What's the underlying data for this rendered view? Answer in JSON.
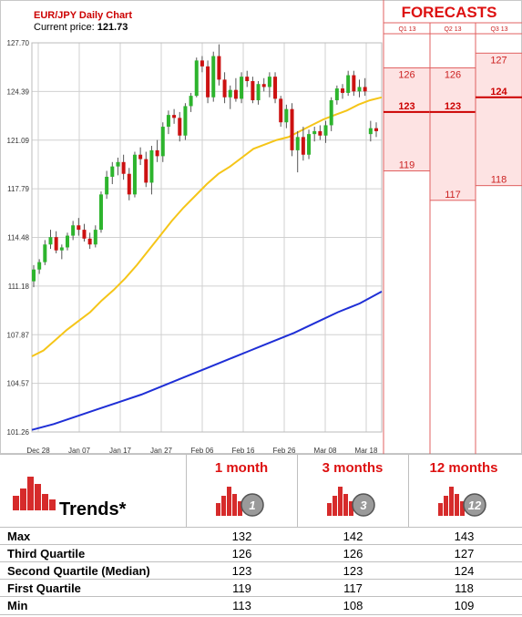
{
  "chart": {
    "title": "EUR/JPY Daily Chart",
    "price_label": "Current price: ",
    "price_value": "121.73"
  },
  "forecasts": {
    "title": "FORECASTS",
    "quarters": [
      "Q1 13",
      "Q2 13",
      "Q3 13"
    ]
  },
  "chart_data": {
    "type": "candlestick",
    "title": "EUR/JPY Daily Chart",
    "ylim": [
      101.26,
      127.7
    ],
    "y_ticks": [
      "127.70",
      "124.39",
      "121.09",
      "117.79",
      "114.48",
      "111.18",
      "107.87",
      "104.57",
      "101.26"
    ],
    "x_ticks": [
      "Dec 28",
      "Jan 07",
      "Jan 17",
      "Jan 27",
      "Feb 06",
      "Feb 16",
      "Feb 26",
      "Mar 08",
      "Mar 18"
    ],
    "grid": true,
    "candles": [
      {
        "o": 111.5,
        "h": 112.6,
        "l": 111.1,
        "c": 112.3
      },
      {
        "o": 112.3,
        "h": 113.0,
        "l": 112.0,
        "c": 112.8
      },
      {
        "o": 112.8,
        "h": 114.3,
        "l": 112.6,
        "c": 114.0
      },
      {
        "o": 114.0,
        "h": 115.0,
        "l": 113.7,
        "c": 114.5
      },
      {
        "o": 114.5,
        "h": 114.9,
        "l": 113.4,
        "c": 113.6
      },
      {
        "o": 113.6,
        "h": 114.0,
        "l": 113.0,
        "c": 113.8
      },
      {
        "o": 113.8,
        "h": 114.8,
        "l": 113.6,
        "c": 114.6
      },
      {
        "o": 114.6,
        "h": 115.6,
        "l": 114.3,
        "c": 115.3
      },
      {
        "o": 115.3,
        "h": 115.8,
        "l": 114.6,
        "c": 115.0
      },
      {
        "o": 115.0,
        "h": 115.4,
        "l": 114.2,
        "c": 114.4
      },
      {
        "o": 114.4,
        "h": 114.8,
        "l": 113.7,
        "c": 114.0
      },
      {
        "o": 114.0,
        "h": 115.3,
        "l": 113.8,
        "c": 115.0
      },
      {
        "o": 115.0,
        "h": 117.6,
        "l": 114.8,
        "c": 117.4
      },
      {
        "o": 117.4,
        "h": 119.0,
        "l": 117.1,
        "c": 118.6
      },
      {
        "o": 118.6,
        "h": 119.6,
        "l": 118.1,
        "c": 119.3
      },
      {
        "o": 119.3,
        "h": 119.9,
        "l": 118.7,
        "c": 119.6
      },
      {
        "o": 119.6,
        "h": 120.1,
        "l": 118.4,
        "c": 118.8
      },
      {
        "o": 118.8,
        "h": 119.2,
        "l": 117.0,
        "c": 117.4
      },
      {
        "o": 117.4,
        "h": 120.3,
        "l": 117.2,
        "c": 120.1
      },
      {
        "o": 120.1,
        "h": 120.6,
        "l": 119.4,
        "c": 119.8
      },
      {
        "o": 119.8,
        "h": 120.3,
        "l": 117.9,
        "c": 118.2
      },
      {
        "o": 118.2,
        "h": 120.7,
        "l": 117.4,
        "c": 120.4
      },
      {
        "o": 120.4,
        "h": 121.1,
        "l": 119.6,
        "c": 120.0
      },
      {
        "o": 120.0,
        "h": 122.3,
        "l": 119.6,
        "c": 122.0
      },
      {
        "o": 122.0,
        "h": 123.1,
        "l": 121.5,
        "c": 122.8
      },
      {
        "o": 122.8,
        "h": 123.2,
        "l": 122.2,
        "c": 122.6
      },
      {
        "o": 122.6,
        "h": 123.0,
        "l": 121.0,
        "c": 121.4
      },
      {
        "o": 121.4,
        "h": 123.6,
        "l": 121.1,
        "c": 123.4
      },
      {
        "o": 123.4,
        "h": 124.3,
        "l": 123.0,
        "c": 124.1
      },
      {
        "o": 124.1,
        "h": 126.7,
        "l": 124.0,
        "c": 126.5
      },
      {
        "o": 126.5,
        "h": 126.8,
        "l": 125.7,
        "c": 126.1
      },
      {
        "o": 126.1,
        "h": 126.5,
        "l": 123.6,
        "c": 124.0
      },
      {
        "o": 124.0,
        "h": 127.1,
        "l": 123.7,
        "c": 126.8
      },
      {
        "o": 126.8,
        "h": 127.6,
        "l": 124.8,
        "c": 125.2
      },
      {
        "o": 125.2,
        "h": 125.7,
        "l": 123.6,
        "c": 124.0
      },
      {
        "o": 124.0,
        "h": 124.8,
        "l": 123.2,
        "c": 124.5
      },
      {
        "o": 124.5,
        "h": 125.3,
        "l": 123.7,
        "c": 123.9
      },
      {
        "o": 123.9,
        "h": 125.7,
        "l": 123.6,
        "c": 125.4
      },
      {
        "o": 125.4,
        "h": 125.8,
        "l": 124.7,
        "c": 125.1
      },
      {
        "o": 125.1,
        "h": 125.4,
        "l": 123.6,
        "c": 123.8
      },
      {
        "o": 123.8,
        "h": 125.1,
        "l": 123.5,
        "c": 124.9
      },
      {
        "o": 124.9,
        "h": 125.3,
        "l": 124.4,
        "c": 124.7
      },
      {
        "o": 124.7,
        "h": 125.7,
        "l": 124.0,
        "c": 125.4
      },
      {
        "o": 125.4,
        "h": 125.7,
        "l": 123.6,
        "c": 123.9
      },
      {
        "o": 123.9,
        "h": 124.1,
        "l": 122.0,
        "c": 122.3
      },
      {
        "o": 122.3,
        "h": 123.5,
        "l": 121.9,
        "c": 123.2
      },
      {
        "o": 123.2,
        "h": 123.6,
        "l": 120.0,
        "c": 120.4
      },
      {
        "o": 120.4,
        "h": 121.7,
        "l": 118.9,
        "c": 121.3
      },
      {
        "o": 121.3,
        "h": 122.0,
        "l": 119.7,
        "c": 120.1
      },
      {
        "o": 120.1,
        "h": 121.8,
        "l": 119.8,
        "c": 121.5
      },
      {
        "o": 121.5,
        "h": 122.0,
        "l": 121.0,
        "c": 121.7
      },
      {
        "o": 121.7,
        "h": 122.1,
        "l": 121.1,
        "c": 121.4
      },
      {
        "o": 121.4,
        "h": 122.4,
        "l": 120.9,
        "c": 122.1
      },
      {
        "o": 122.1,
        "h": 124.0,
        "l": 121.7,
        "c": 123.8
      },
      {
        "o": 123.8,
        "h": 124.8,
        "l": 123.5,
        "c": 124.6
      },
      {
        "o": 124.6,
        "h": 124.9,
        "l": 123.9,
        "c": 124.3
      },
      {
        "o": 124.3,
        "h": 125.8,
        "l": 124.1,
        "c": 125.5
      },
      {
        "o": 125.5,
        "h": 125.8,
        "l": 124.1,
        "c": 124.4
      },
      {
        "o": 124.4,
        "h": 125.2,
        "l": 124.0,
        "c": 124.7
      },
      {
        "o": 124.7,
        "h": 125.3,
        "l": 124.1,
        "c": 124.4
      },
      {
        "o": 121.5,
        "h": 122.4,
        "l": 121.0,
        "c": 121.9
      },
      {
        "o": 121.9,
        "h": 122.3,
        "l": 121.3,
        "c": 121.7
      }
    ],
    "ma_fast": [
      106.4,
      106.8,
      107.5,
      108.2,
      108.8,
      109.4,
      110.2,
      110.9,
      111.7,
      112.6,
      113.6,
      114.6,
      115.6,
      116.5,
      117.3,
      118.1,
      118.8,
      119.3,
      119.9,
      120.5,
      120.8,
      121.1,
      121.3,
      121.7,
      122.1,
      122.5,
      122.8,
      123.1,
      123.5,
      123.8,
      124.0
    ],
    "ma_slow": [
      101.4,
      101.8,
      102.3,
      102.8,
      103.3,
      103.8,
      104.4,
      105.0,
      105.6,
      106.2,
      106.8,
      107.4,
      108.0,
      108.7,
      109.4,
      110.0,
      110.8
    ],
    "colors": {
      "up": "#2db42d",
      "down": "#cc1111",
      "ma_fast": "#f5c518",
      "ma_slow": "#1f2fd6"
    }
  },
  "forecast_data": [
    {
      "quarter": "Q1 13",
      "high": 126,
      "median": 123,
      "low": 119
    },
    {
      "quarter": "Q2 13",
      "high": 126,
      "median": 123,
      "low": 117
    },
    {
      "quarter": "Q3 13",
      "high": 127,
      "median": 124,
      "low": 118
    }
  ],
  "trends": {
    "title": "Trends*",
    "icon": "bar-chart-icon",
    "columns": [
      {
        "label": "1 month",
        "badge": "1"
      },
      {
        "label": "3 months",
        "badge": "3"
      },
      {
        "label": "12 months",
        "badge": "12"
      }
    ],
    "rows": [
      {
        "label": "Max",
        "values": [
          "132",
          "142",
          "143"
        ]
      },
      {
        "label": "Third Quartile",
        "values": [
          "126",
          "126",
          "127"
        ]
      },
      {
        "label": "Second Quartile (Median)",
        "values": [
          "123",
          "123",
          "124"
        ]
      },
      {
        "label": "First Quartile",
        "values": [
          "119",
          "117",
          "118"
        ]
      },
      {
        "label": "Min",
        "values": [
          "113",
          "108",
          "109"
        ]
      }
    ]
  }
}
